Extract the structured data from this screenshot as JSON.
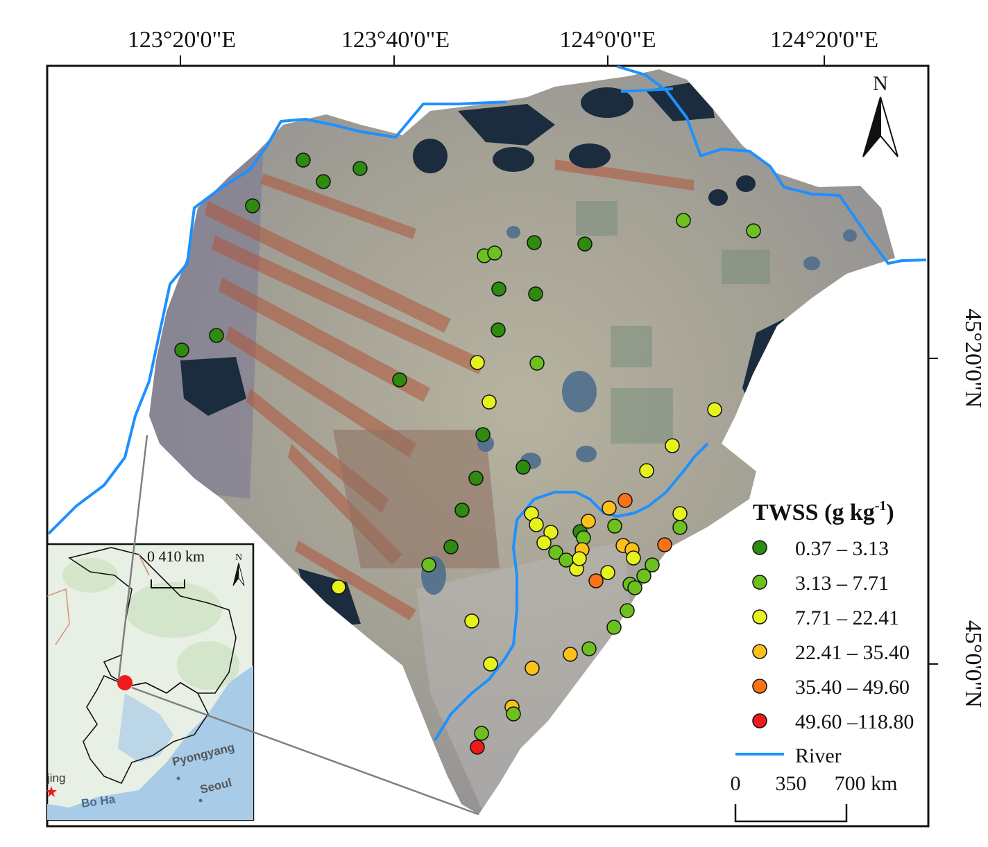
{
  "map": {
    "lon_labels": [
      "123°20'0\"E",
      "123°40'0\"E",
      "124°0'0\"E",
      "124°20'0\"E"
    ],
    "lat_labels": [
      "45°20'0\"N",
      "45°0'0\"N"
    ],
    "north_arrow_label": "N"
  },
  "legend": {
    "title": "TWSS (g kg",
    "title_sup": "-1",
    "title_close": ")",
    "classes": [
      {
        "range": "0.37 – 3.13",
        "color": "#2e8b10"
      },
      {
        "range": "3.13 – 7.71",
        "color": "#6cc11e"
      },
      {
        "range": "7.71 – 22.41",
        "color": "#e6f21c"
      },
      {
        "range": "22.41 – 35.40",
        "color": "#fdc21a"
      },
      {
        "range": "35.40 – 49.60",
        "color": "#f97316"
      },
      {
        "range": "49.60 –118.80",
        "color": "#ef1a1a"
      }
    ],
    "river_label": "River",
    "river_color": "#1e90ff"
  },
  "scale_bar": {
    "ticks": [
      "0",
      "350",
      "700 km"
    ]
  },
  "inset": {
    "scale_label": "0   410 km",
    "north_label": "N",
    "places": [
      "Pyongyang",
      "Seoul",
      "Bo Ha",
      "jing"
    ]
  },
  "samples": {
    "class_order": [
      "c1",
      "c2",
      "c3",
      "c4",
      "c5",
      "c6"
    ]
  }
}
